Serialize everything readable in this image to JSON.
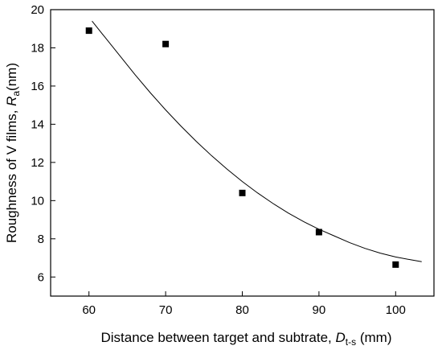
{
  "chart_data": {
    "type": "scatter",
    "xlabel_main": "Distance between target and subtrate, ",
    "xlabel_var": "D",
    "xlabel_sub": "t-s",
    "xlabel_unit": " (mm)",
    "ylabel_main": "Roughness of V films, ",
    "ylabel_var": "R",
    "ylabel_sub": "a",
    "ylabel_unit": "(nm)",
    "xlim": [
      55,
      105
    ],
    "ylim": [
      5,
      20
    ],
    "xticks": [
      60,
      70,
      80,
      90,
      100
    ],
    "yticks": [
      6,
      8,
      10,
      12,
      14,
      16,
      18,
      20
    ],
    "grid": false,
    "series": [
      {
        "marker": "square",
        "color": "#000000",
        "x": [
          60,
          70,
          80,
          90,
          100
        ],
        "y": [
          18.9,
          18.2,
          10.4,
          8.35,
          6.65
        ]
      }
    ],
    "fit_curve": {
      "color": "#000000",
      "x": [
        60.4,
        62,
        64,
        66,
        68,
        70,
        72,
        74,
        76,
        78,
        80,
        82,
        84,
        86,
        88,
        90,
        92,
        94,
        96,
        98,
        100,
        102,
        103.4
      ],
      "y": [
        19.4,
        18.6,
        17.6,
        16.6,
        15.65,
        14.75,
        13.9,
        13.1,
        12.35,
        11.65,
        11.0,
        10.4,
        9.85,
        9.35,
        8.9,
        8.5,
        8.15,
        7.8,
        7.5,
        7.25,
        7.05,
        6.9,
        6.8
      ]
    }
  }
}
